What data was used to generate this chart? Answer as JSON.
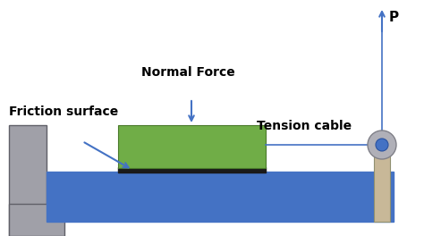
{
  "bg_color": "#ffffff",
  "blue_color": "#4472c4",
  "green_color": "#70ad47",
  "green_edge": "#4a7a2a",
  "black_color": "#1a1a1a",
  "gray_wall": "#a0a0a8",
  "gray_wall_edge": "#606068",
  "tan_color": "#c8b898",
  "tan_edge": "#909070",
  "pulley_color": "#b0b0b8",
  "pulley_edge": "#808088",
  "arrow_color": "#4472c4",
  "text_color": "#000000",
  "label_friction": "Friction surface",
  "label_normal": "Normal Force",
  "label_tension": "Tension cable",
  "label_P": "P",
  "figsize": [
    4.74,
    2.64
  ],
  "dpi": 100
}
